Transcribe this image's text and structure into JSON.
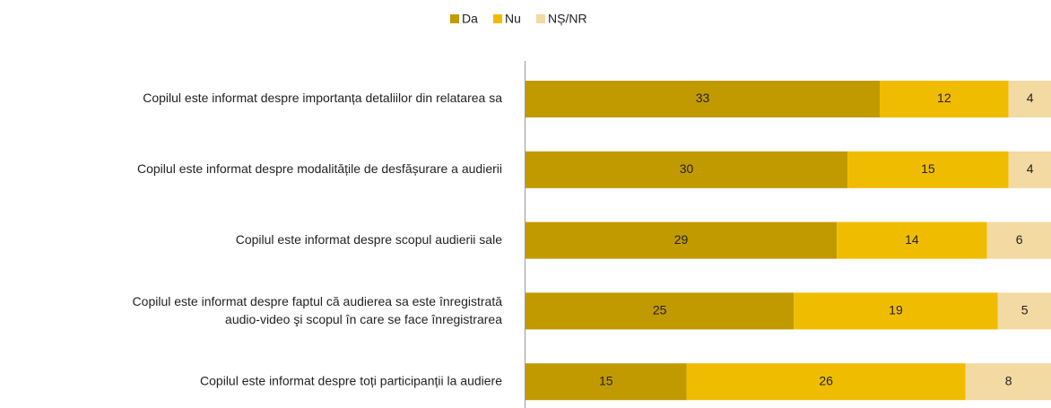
{
  "chart_data": {
    "type": "stacked-barh",
    "categories": [
      "Copilul este informat despre importanța detaliilor din relatarea sa",
      "Copilul este informat despre modalitățile de desfășurare a audierii",
      "Copilul este informat despre scopul audierii sale",
      "Copilul este informat despre faptul că audierea sa este înregistrată\naudio-video şi scopul în care se face înregistrarea",
      "Copilul este informat despre toți participanții la audiere"
    ],
    "series": [
      {
        "name": "Da",
        "color": "#c19a00",
        "values": [
          33,
          30,
          29,
          25,
          15
        ]
      },
      {
        "name": "Nu",
        "color": "#f0bc00",
        "values": [
          12,
          15,
          14,
          19,
          26
        ]
      },
      {
        "name": "NȘ/NR",
        "color": "#f3d9a2",
        "values": [
          4,
          4,
          6,
          5,
          8
        ]
      }
    ],
    "legend": "top"
  }
}
